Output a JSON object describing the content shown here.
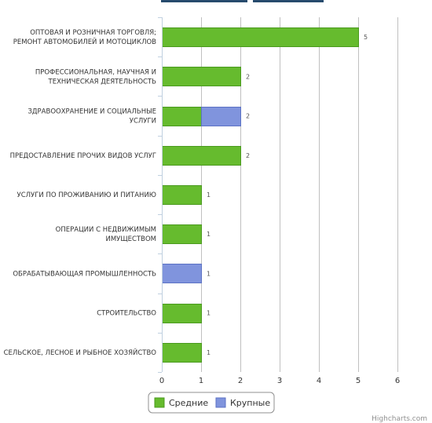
{
  "chart_data": {
    "type": "bar",
    "orientation": "horizontal",
    "stacked": true,
    "title": "",
    "categories": [
      [
        "ОПТОВАЯ И РОЗНИЧНАЯ ТОРГОВЛЯ;",
        "РЕМОНТ АВТОМОБИЛЕЙ И МОТОЦИКЛОВ"
      ],
      [
        "ПРОФЕССИОНАЛЬНАЯ, НАУЧНАЯ И",
        "ТЕХНИЧЕСКАЯ ДЕЯТЕЛЬНОСТЬ"
      ],
      [
        "ЗДРАВООХРАНЕНИЕ И СОЦИАЛЬНЫЕ",
        "УСЛУГИ"
      ],
      [
        "ПРЕДОСТАВЛЕНИЕ ПРОЧИХ ВИДОВ УСЛУГ"
      ],
      [
        "УСЛУГИ ПО ПРОЖИВАНИЮ И ПИТАНИЮ"
      ],
      [
        "ОПЕРАЦИИ С НЕДВИЖИМЫМ",
        "ИМУЩЕСТВОМ"
      ],
      [
        "ОБРАБАТЫВАЮЩАЯ ПРОМЫШЛЕННОСТЬ"
      ],
      [
        "СТРОИТЕЛЬСТВО"
      ],
      [
        "СЕЛЬСКОЕ, ЛЕСНОЕ И РЫБНОЕ ХОЗЯЙСТВО"
      ]
    ],
    "series": [
      {
        "name": "Средние",
        "color": "#66bb2e",
        "values": [
          5,
          2,
          1,
          2,
          1,
          1,
          0,
          1,
          1
        ]
      },
      {
        "name": "Крупные",
        "color": "#8094dd",
        "values": [
          0,
          0,
          1,
          0,
          0,
          0,
          1,
          0,
          0
        ]
      }
    ],
    "totals": [
      5,
      2,
      2,
      2,
      1,
      1,
      1,
      1,
      1
    ],
    "xlim": [
      0,
      6
    ],
    "x_ticks": [
      0,
      1,
      2,
      3,
      4,
      5,
      6
    ],
    "grid": true,
    "legend_position": "bottom-center",
    "credits": "Highcharts.com"
  }
}
